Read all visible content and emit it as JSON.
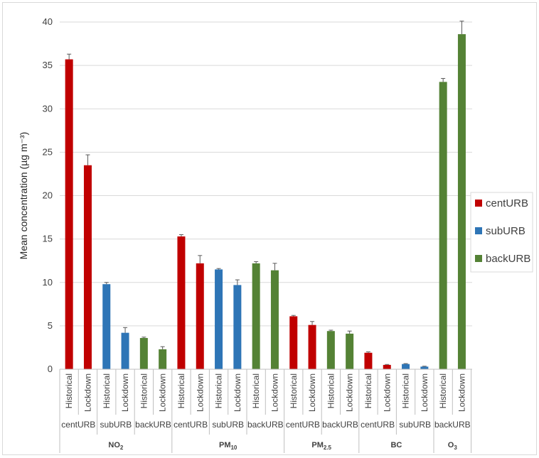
{
  "chart_data": {
    "type": "bar",
    "ylabel": "Mean concentration (µg m⁻³)",
    "ylim": [
      0,
      40
    ],
    "yticks": [
      0,
      5,
      10,
      15,
      20,
      25,
      30,
      35,
      40
    ],
    "grid": true,
    "legend_position": "right",
    "colors": {
      "centURB": "#c00000",
      "subURB": "#2e75b6",
      "backURB": "#548235"
    },
    "legend": [
      "centURB",
      "subURB",
      "backURB"
    ],
    "pollutants": [
      {
        "name": "NO",
        "sub": "2",
        "groups": [
          {
            "site": "centURB",
            "bars": [
              {
                "label": "Historical",
                "value": 35.7,
                "err": 0.6
              },
              {
                "label": "Lockdown",
                "value": 23.5,
                "err": 1.2
              }
            ]
          },
          {
            "site": "subURB",
            "bars": [
              {
                "label": "Historical",
                "value": 9.8,
                "err": 0.2
              },
              {
                "label": "Lockdown",
                "value": 4.2,
                "err": 0.6
              }
            ]
          },
          {
            "site": "backURB",
            "bars": [
              {
                "label": "Historical",
                "value": 3.6,
                "err": 0.1
              },
              {
                "label": "Lockdown",
                "value": 2.3,
                "err": 0.3
              }
            ]
          }
        ]
      },
      {
        "name": "PM",
        "sub": "10",
        "groups": [
          {
            "site": "centURB",
            "bars": [
              {
                "label": "Historical",
                "value": 15.3,
                "err": 0.2
              },
              {
                "label": "Lockdown",
                "value": 12.2,
                "err": 0.9
              }
            ]
          },
          {
            "site": "subURB",
            "bars": [
              {
                "label": "Historical",
                "value": 11.5,
                "err": 0.1
              },
              {
                "label": "Lockdown",
                "value": 9.7,
                "err": 0.6
              }
            ]
          },
          {
            "site": "backURB",
            "bars": [
              {
                "label": "Historical",
                "value": 12.2,
                "err": 0.2
              },
              {
                "label": "Lockdown",
                "value": 11.4,
                "err": 0.8
              }
            ]
          }
        ]
      },
      {
        "name": "PM",
        "sub": "2.5",
        "groups": [
          {
            "site": "centURB",
            "bars": [
              {
                "label": "Historical",
                "value": 6.1,
                "err": 0.1
              },
              {
                "label": "Lockdown",
                "value": 5.1,
                "err": 0.4
              }
            ]
          },
          {
            "site": "backURB",
            "bars": [
              {
                "label": "Historical",
                "value": 4.4,
                "err": 0.1
              },
              {
                "label": "Lockdown",
                "value": 4.1,
                "err": 0.3
              }
            ]
          }
        ]
      },
      {
        "name": "BC",
        "sub": "",
        "groups": [
          {
            "site": "centURB",
            "bars": [
              {
                "label": "Historical",
                "value": 1.9,
                "err": 0.1
              },
              {
                "label": "Lockdown",
                "value": 0.5,
                "err": 0.05
              }
            ]
          },
          {
            "site": "subURB",
            "bars": [
              {
                "label": "Historical",
                "value": 0.6,
                "err": 0.05
              },
              {
                "label": "Lockdown",
                "value": 0.3,
                "err": 0.05
              }
            ]
          }
        ]
      },
      {
        "name": "O",
        "sub": "3",
        "groups": [
          {
            "site": "backURB",
            "bars": [
              {
                "label": "Historical",
                "value": 33.1,
                "err": 0.4
              },
              {
                "label": "Lockdown",
                "value": 38.6,
                "err": 1.5
              }
            ]
          }
        ]
      }
    ]
  }
}
